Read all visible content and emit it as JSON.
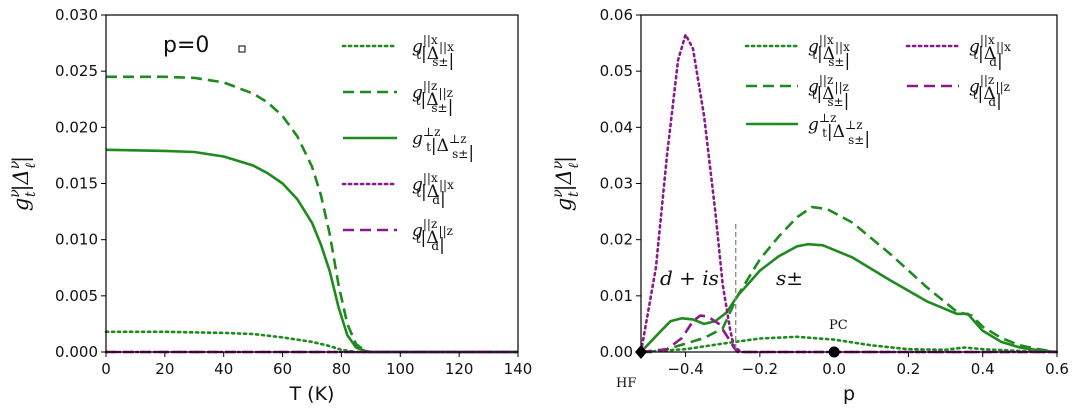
{
  "colors": {
    "green": "#1f8a1f",
    "purple": "#8a1a8a",
    "axis": "#000000"
  },
  "chart_data": [
    {
      "type": "line",
      "panel": "left",
      "annotation": "p=0",
      "xlabel": "T (K)",
      "ylabel": "g_t^ν|Δ_ℓ^ν|",
      "xlim": [
        0,
        140
      ],
      "ylim": [
        0,
        0.03
      ],
      "xticks": [
        0,
        20,
        40,
        60,
        80,
        100,
        120,
        140
      ],
      "yticks": [
        0.0,
        0.005,
        0.01,
        0.015,
        0.02,
        0.025,
        0.03
      ],
      "ytick_labels": [
        "0.000",
        "0.005",
        "0.010",
        "0.015",
        "0.020",
        "0.025",
        "0.030"
      ],
      "legend_position": "right",
      "series": [
        {
          "name": "g_t^{||x}|Δ_{s±}^{||x}|",
          "color": "green",
          "style": "dotted",
          "x": [
            0,
            20,
            40,
            50,
            60,
            70,
            75,
            80,
            85,
            90,
            140
          ],
          "y": [
            0.0018,
            0.0018,
            0.0017,
            0.0016,
            0.0013,
            0.0009,
            0.0006,
            0.0002,
            0.0,
            0.0,
            0.0
          ]
        },
        {
          "name": "g_t^{||z}|Δ_{s±}^{||z}|",
          "color": "green",
          "style": "dashed",
          "x": [
            0,
            20,
            30,
            40,
            50,
            55,
            60,
            65,
            70,
            73,
            76,
            79,
            82,
            85,
            88,
            90,
            140
          ],
          "y": [
            0.0245,
            0.0245,
            0.0244,
            0.024,
            0.023,
            0.0222,
            0.021,
            0.0192,
            0.0165,
            0.014,
            0.0105,
            0.006,
            0.0025,
            0.0007,
            0.0001,
            0.0,
            0.0
          ]
        },
        {
          "name": "g_t^{⊥z}|Δ_{s±}^{⊥z}|",
          "color": "green",
          "style": "solid",
          "x": [
            0,
            20,
            30,
            40,
            50,
            55,
            60,
            65,
            70,
            73,
            76,
            79,
            82,
            85,
            88,
            90,
            140
          ],
          "y": [
            0.018,
            0.0179,
            0.0178,
            0.0174,
            0.0166,
            0.0159,
            0.015,
            0.0136,
            0.0115,
            0.0096,
            0.0072,
            0.004,
            0.0015,
            0.0004,
            0.0001,
            0.0,
            0.0
          ]
        },
        {
          "name": "g_t^{||x}|Δ_d^{||x}|",
          "color": "purple",
          "style": "dotted",
          "x": [
            0,
            140
          ],
          "y": [
            0.0,
            0.0
          ]
        },
        {
          "name": "g_t^{||z}|Δ_d^{||z}|",
          "color": "purple",
          "style": "dashed",
          "x": [
            0,
            140
          ],
          "y": [
            0.0,
            0.0
          ]
        }
      ]
    },
    {
      "type": "line",
      "panel": "right",
      "xlabel": "p",
      "ylabel": "g_t^ν|Δ_ℓ^ν|",
      "xlim": [
        -0.52,
        0.6
      ],
      "ylim": [
        0,
        0.06
      ],
      "xticks": [
        -0.4,
        -0.2,
        0.0,
        0.2,
        0.4,
        0.6
      ],
      "xtick_labels": [
        "−0.4",
        "−0.2",
        "0.0",
        "0.2",
        "0.4",
        "0.6"
      ],
      "yticks": [
        0.0,
        0.01,
        0.02,
        0.03,
        0.04,
        0.05,
        0.06
      ],
      "ytick_labels": [
        "0.00",
        "0.01",
        "0.02",
        "0.03",
        "0.04",
        "0.05",
        "0.06"
      ],
      "legend_position": "top",
      "annotations": [
        "d + is",
        "s±",
        "PC",
        "HF"
      ],
      "vline_x": -0.265,
      "markers": [
        {
          "x": -0.52,
          "y": 0.0,
          "shape": "diamond"
        },
        {
          "x": 0.0,
          "y": 0.0,
          "shape": "circle"
        }
      ],
      "series": [
        {
          "name": "g_t^{||x}|Δ_{s±}^{||x}|",
          "color": "green",
          "style": "dotted",
          "x": [
            -0.52,
            -0.4,
            -0.3,
            -0.2,
            -0.1,
            0.0,
            0.1,
            0.2,
            0.3,
            0.35,
            0.4,
            0.5,
            0.6
          ],
          "y": [
            0.0,
            0.0005,
            0.0015,
            0.0024,
            0.0027,
            0.0022,
            0.0012,
            0.0005,
            0.0004,
            0.0008,
            0.0005,
            0.0002,
            0.0
          ]
        },
        {
          "name": "g_t^{||z}|Δ_{s±}^{||z}|",
          "color": "green",
          "style": "dashed",
          "x": [
            -0.52,
            -0.49,
            -0.45,
            -0.4,
            -0.35,
            -0.3,
            -0.26,
            -0.2,
            -0.15,
            -0.1,
            -0.06,
            -0.02,
            0.05,
            0.15,
            0.25,
            0.33,
            0.37,
            0.4,
            0.45,
            0.5,
            0.55,
            0.6
          ],
          "y": [
            0.0,
            0.0,
            0.0005,
            0.0015,
            0.0025,
            0.0042,
            0.01,
            0.0165,
            0.0205,
            0.024,
            0.0258,
            0.0255,
            0.023,
            0.0175,
            0.0115,
            0.0072,
            0.0065,
            0.0045,
            0.0025,
            0.0012,
            0.0005,
            0.0
          ]
        },
        {
          "name": "g_t^{⊥z}|Δ_{s±}^{⊥z}|",
          "color": "green",
          "style": "solid",
          "x": [
            -0.52,
            -0.47,
            -0.44,
            -0.41,
            -0.38,
            -0.35,
            -0.32,
            -0.29,
            -0.26,
            -0.2,
            -0.15,
            -0.1,
            -0.07,
            -0.03,
            0.05,
            0.15,
            0.25,
            0.33,
            0.36,
            0.37,
            0.4,
            0.45,
            0.5,
            0.55,
            0.6
          ],
          "y": [
            0.0,
            0.0035,
            0.0055,
            0.006,
            0.0058,
            0.005,
            0.0055,
            0.007,
            0.01,
            0.0145,
            0.017,
            0.0188,
            0.0192,
            0.019,
            0.0168,
            0.0128,
            0.009,
            0.0068,
            0.0068,
            0.006,
            0.0038,
            0.0018,
            0.0008,
            0.0003,
            0.0
          ]
        },
        {
          "name": "g_t^{||x}|Δ_d^{||x}|",
          "color": "purple",
          "style": "dotted",
          "x": [
            -0.52,
            -0.48,
            -0.45,
            -0.42,
            -0.4,
            -0.38,
            -0.35,
            -0.32,
            -0.3,
            -0.28,
            -0.27,
            -0.25,
            0.6
          ],
          "y": [
            0.0,
            0.015,
            0.035,
            0.052,
            0.0565,
            0.054,
            0.042,
            0.025,
            0.012,
            0.004,
            0.001,
            0.0,
            0.0
          ]
        },
        {
          "name": "g_t^{||z}|Δ_d^{||z}|",
          "color": "purple",
          "style": "dashed",
          "x": [
            -0.52,
            -0.45,
            -0.41,
            -0.38,
            -0.36,
            -0.34,
            -0.31,
            -0.29,
            -0.27,
            -0.26,
            0.6
          ],
          "y": [
            0.0,
            0.0005,
            0.0025,
            0.0055,
            0.0065,
            0.0063,
            0.005,
            0.003,
            0.0008,
            0.0,
            0.0
          ]
        }
      ]
    }
  ]
}
